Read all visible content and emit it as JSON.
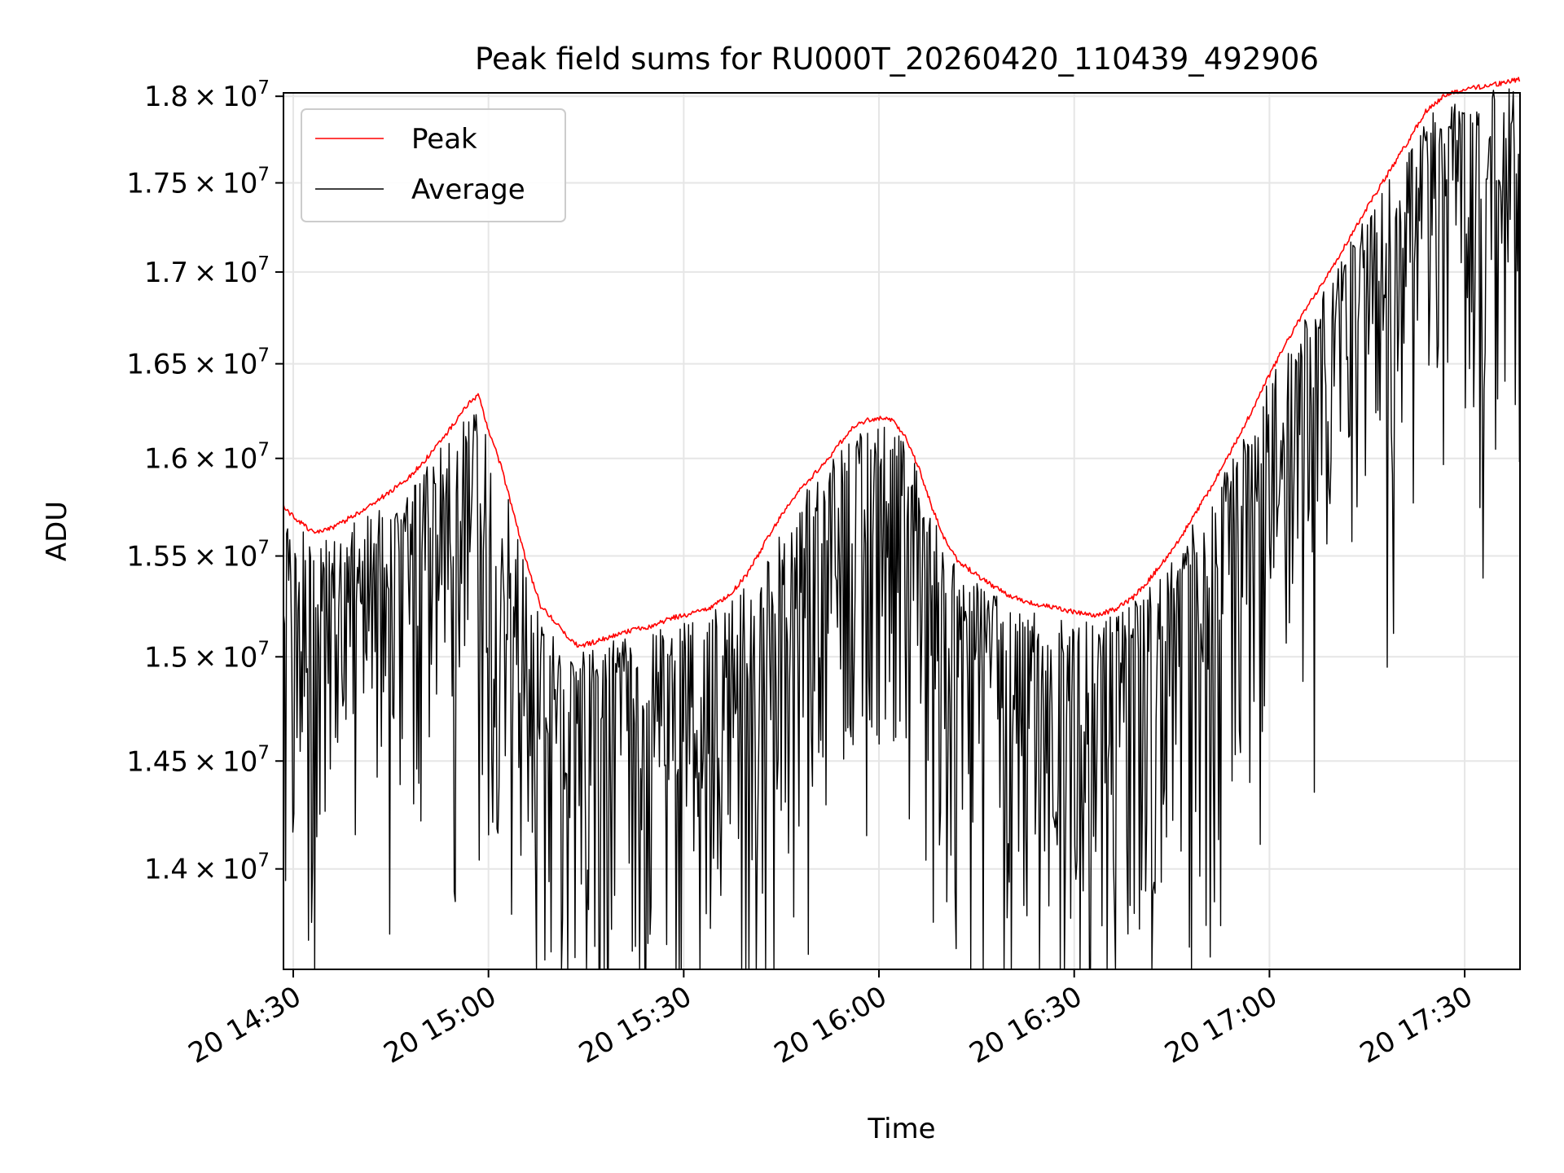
{
  "chart_data": {
    "type": "line",
    "title": "Peak field sums for RU000T_20260420_110439_492906",
    "xlabel": "Time",
    "ylabel": "ADU",
    "y_scale": "log",
    "xlim_minutes": [
      -1.5,
      188.5
    ],
    "ylim": [
      13550000,
      18020000
    ],
    "grid": true,
    "legend_position": "upper-left",
    "x_ticks": [
      {
        "minutes": 0,
        "label": "20 14:30"
      },
      {
        "minutes": 30,
        "label": "20 15:00"
      },
      {
        "minutes": 60,
        "label": "20 15:30"
      },
      {
        "minutes": 90,
        "label": "20 16:00"
      },
      {
        "minutes": 120,
        "label": "20 16:30"
      },
      {
        "minutes": 150,
        "label": "20 17:00"
      },
      {
        "minutes": 180,
        "label": "20 17:30"
      }
    ],
    "y_ticks": [
      {
        "value": 14000000,
        "mantissa": "1.4",
        "exponent": "7"
      },
      {
        "value": 14500000,
        "mantissa": "1.45",
        "exponent": "7"
      },
      {
        "value": 15000000,
        "mantissa": "1.5",
        "exponent": "7"
      },
      {
        "value": 15500000,
        "mantissa": "1.55",
        "exponent": "7"
      },
      {
        "value": 16000000,
        "mantissa": "1.6",
        "exponent": "7"
      },
      {
        "value": 16500000,
        "mantissa": "1.65",
        "exponent": "7"
      },
      {
        "value": 17000000,
        "mantissa": "1.7",
        "exponent": "7"
      },
      {
        "value": 17500000,
        "mantissa": "1.75",
        "exponent": "7"
      },
      {
        "value": 18000000,
        "mantissa": "1.8",
        "exponent": "7"
      }
    ],
    "tick_multiply_sign": "×",
    "tick_base": "10",
    "series": [
      {
        "name": "Peak",
        "color": "#ff0000",
        "x_minutes": [
          -1.5,
          0,
          3,
          6,
          9,
          12,
          15,
          18,
          21,
          24,
          27,
          28.5,
          30,
          32,
          34,
          36,
          38,
          40,
          42,
          44,
          46,
          48,
          50,
          52,
          55,
          58,
          61,
          64,
          67,
          70,
          73,
          76,
          79,
          82,
          84,
          86,
          88,
          90,
          92,
          94,
          96,
          98,
          100,
          102,
          104,
          106,
          108,
          110,
          112,
          114,
          117,
          120,
          123,
          126,
          129,
          132,
          135,
          138,
          141,
          144,
          147,
          150,
          153,
          156,
          159,
          162,
          165,
          168,
          171,
          174,
          177,
          180,
          183,
          186,
          188.5
        ],
        "values": [
          15750000,
          15700000,
          15620000,
          15640000,
          15700000,
          15760000,
          15830000,
          15910000,
          16020000,
          16150000,
          16290000,
          16330000,
          16150000,
          15950000,
          15700000,
          15450000,
          15250000,
          15180000,
          15100000,
          15050000,
          15070000,
          15090000,
          15110000,
          15130000,
          15150000,
          15190000,
          15210000,
          15240000,
          15300000,
          15420000,
          15600000,
          15760000,
          15880000,
          15990000,
          16080000,
          16160000,
          16200000,
          16210000,
          16200000,
          16120000,
          15960000,
          15760000,
          15590000,
          15480000,
          15430000,
          15380000,
          15340000,
          15300000,
          15280000,
          15260000,
          15240000,
          15220000,
          15200000,
          15230000,
          15290000,
          15400000,
          15530000,
          15680000,
          15850000,
          16030000,
          16230000,
          16440000,
          16640000,
          16820000,
          16990000,
          17170000,
          17360000,
          17540000,
          17720000,
          17910000,
          18010000,
          18040000,
          18060000,
          18080000,
          18100000
        ]
      },
      {
        "name": "Average",
        "color": "#000000"
      }
    ]
  }
}
